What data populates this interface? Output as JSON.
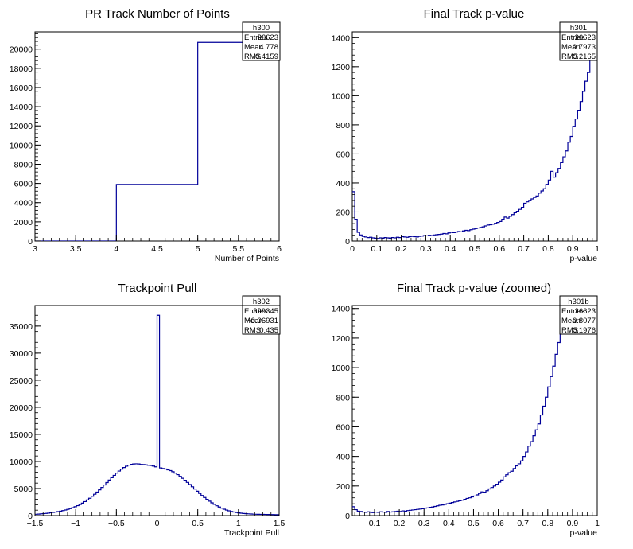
{
  "chart_data": [
    {
      "type": "histogram",
      "title": "PR Track Number of Points",
      "xlabel": "Number of Points",
      "ylabel": "",
      "xlim": [
        3,
        6
      ],
      "ylim": [
        0,
        21800
      ],
      "xticks": [
        3,
        3.5,
        4,
        4.5,
        5,
        5.5,
        6
      ],
      "xtick_labels": [
        "3",
        "3.5",
        "4",
        "4.5",
        "5",
        "5.5",
        "6"
      ],
      "yticks": [
        0,
        2000,
        4000,
        6000,
        8000,
        10000,
        12000,
        14000,
        16000,
        18000,
        20000
      ],
      "ytick_labels": [
        "0",
        "2000",
        "4000",
        "6000",
        "8000",
        "10000",
        "12000",
        "14000",
        "16000",
        "18000",
        "20000"
      ],
      "bins": [
        [
          3,
          4,
          0
        ],
        [
          4,
          5,
          5900
        ],
        [
          5,
          6,
          20700
        ]
      ],
      "stats": {
        "name": "h300",
        "rows": [
          [
            "Entries",
            "26623"
          ],
          [
            "Mean",
            "4.778"
          ],
          [
            "RMS",
            "0.4159"
          ]
        ]
      }
    },
    {
      "type": "histogram",
      "title": "Final Track p-value",
      "xlabel": "p-value",
      "ylabel": "",
      "xlim": [
        0,
        1
      ],
      "ylim": [
        0,
        1440
      ],
      "xticks": [
        0,
        0.1,
        0.2,
        0.3,
        0.4,
        0.5,
        0.6,
        0.7,
        0.8,
        0.9,
        1
      ],
      "xtick_labels": [
        "0",
        "0.1",
        "0.2",
        "0.3",
        "0.4",
        "0.5",
        "0.6",
        "0.7",
        "0.8",
        "0.9",
        "1"
      ],
      "yticks": [
        0,
        200,
        400,
        600,
        800,
        1000,
        1200,
        1400
      ],
      "ytick_labels": [
        "0",
        "200",
        "400",
        "600",
        "800",
        "1000",
        "1200",
        "1400"
      ],
      "bin_start": 0,
      "bin_width": 0.01,
      "values": [
        340,
        150,
        60,
        42,
        32,
        28,
        24,
        26,
        22,
        20,
        18,
        22,
        20,
        24,
        22,
        20,
        24,
        22,
        26,
        24,
        30,
        28,
        26,
        30,
        32,
        30,
        28,
        32,
        34,
        38,
        36,
        40,
        38,
        42,
        44,
        46,
        48,
        52,
        50,
        56,
        60,
        58,
        62,
        66,
        64,
        70,
        74,
        72,
        78,
        82,
        86,
        90,
        94,
        98,
        104,
        110,
        112,
        116,
        122,
        128,
        135,
        150,
        165,
        158,
        170,
        182,
        195,
        205,
        218,
        232,
        260,
        270,
        280,
        290,
        300,
        310,
        330,
        345,
        360,
        390,
        420,
        480,
        440,
        470,
        500,
        540,
        580,
        620,
        680,
        720,
        790,
        840,
        900,
        960,
        1030,
        1100,
        1160,
        1260,
        1480,
        1480
      ]
    },
    {
      "type": "histogram",
      "title": "Trackpoint Pull",
      "xlabel": "Trackpoint Pull",
      "ylabel": "",
      "xlim": [
        -1.5,
        1.5
      ],
      "ylim": [
        0,
        38800
      ],
      "xticks": [
        -1.5,
        -1,
        -0.5,
        0,
        0.5,
        1,
        1.5
      ],
      "xtick_labels": [
        "−1.5",
        "−1",
        "−0.5",
        "0",
        "0.5",
        "1",
        "1.5"
      ],
      "yticks": [
        0,
        5000,
        10000,
        15000,
        20000,
        25000,
        30000,
        35000
      ],
      "ytick_labels": [
        "0",
        "5000",
        "10000",
        "15000",
        "20000",
        "25000",
        "30000",
        "35000"
      ],
      "bin_start": -1.5,
      "bin_width": 0.03,
      "values": [
        250,
        280,
        320,
        360,
        400,
        450,
        510,
        580,
        650,
        730,
        820,
        920,
        1030,
        1150,
        1290,
        1450,
        1630,
        1830,
        2050,
        2300,
        2580,
        2880,
        3200,
        3560,
        3940,
        4340,
        4760,
        5200,
        5650,
        6100,
        6560,
        7000,
        7430,
        7840,
        8220,
        8570,
        8870,
        9120,
        9320,
        9460,
        9540,
        9560,
        9530,
        9450,
        9420,
        9380,
        9300,
        9250,
        9150,
        9000,
        37000,
        8800,
        8700,
        8600,
        8450,
        8300,
        8100,
        7850,
        7560,
        7240,
        6890,
        6520,
        6130,
        5730,
        5320,
        4910,
        4500,
        4100,
        3710,
        3340,
        2990,
        2660,
        2350,
        2070,
        1810,
        1580,
        1370,
        1180,
        1020,
        880,
        760,
        660,
        570,
        500,
        440,
        390,
        350,
        320,
        290,
        270,
        250,
        240,
        230,
        220,
        210,
        200,
        190,
        180,
        170,
        160
      ]
    },
    {
      "type": "histogram",
      "title": "Final Track p-value (zoomed)",
      "xlabel": "p-value",
      "ylabel": "",
      "xlim": [
        0.01,
        1
      ],
      "ylim": [
        0,
        1420
      ],
      "xticks": [
        0.1,
        0.2,
        0.3,
        0.4,
        0.5,
        0.6,
        0.7,
        0.8,
        0.9,
        1
      ],
      "xtick_labels": [
        "0.1",
        "0.2",
        "0.3",
        "0.4",
        "0.5",
        "0.6",
        "0.7",
        "0.8",
        "0.9",
        "1"
      ],
      "yticks": [
        0,
        200,
        400,
        600,
        800,
        1000,
        1200,
        1400
      ],
      "ytick_labels": [
        "0",
        "200",
        "400",
        "600",
        "800",
        "1000",
        "1200",
        "1400"
      ],
      "bin_start": 0.01,
      "bin_width": 0.01,
      "values": [
        60,
        40,
        30,
        28,
        24,
        22,
        26,
        22,
        20,
        24,
        22,
        26,
        24,
        22,
        28,
        24,
        26,
        28,
        30,
        28,
        32,
        30,
        34,
        36,
        38,
        40,
        42,
        44,
        46,
        50,
        52,
        56,
        58,
        62,
        66,
        70,
        72,
        76,
        80,
        84,
        88,
        92,
        96,
        100,
        104,
        110,
        116,
        120,
        126,
        132,
        140,
        150,
        160,
        158,
        168,
        180,
        190,
        200,
        212,
        226,
        240,
        262,
        276,
        290,
        300,
        318,
        336,
        350,
        370,
        400,
        430,
        470,
        500,
        540,
        580,
        620,
        680,
        740,
        800,
        870,
        940,
        1010,
        1090,
        1170,
        1260,
        1480,
        1480,
        1480,
        1480
      ]
    }
  ],
  "stats_boxes": [
    {
      "name": "h300",
      "rows": [
        [
          "Entries",
          "26623"
        ],
        [
          "Mean",
          "4.778"
        ],
        [
          "RMS",
          "0.4159"
        ]
      ]
    },
    {
      "name": "h301",
      "rows": [
        [
          "Entries",
          "26623"
        ],
        [
          "Mean",
          "0.7973"
        ],
        [
          "RMS",
          "0.2165"
        ]
      ]
    },
    {
      "name": "h302",
      "rows": [
        [
          "Entries",
          "399345"
        ],
        [
          "Mean",
          "−0.06931"
        ],
        [
          "RMS",
          "0.435"
        ]
      ]
    },
    {
      "name": "h301b",
      "rows": [
        [
          "Entries",
          "26623"
        ],
        [
          "Mean",
          "0.8077"
        ],
        [
          "RMS",
          "0.1976"
        ]
      ]
    }
  ],
  "colors": {
    "line": "#000099",
    "axis": "#000000",
    "background": "#ffffff"
  }
}
